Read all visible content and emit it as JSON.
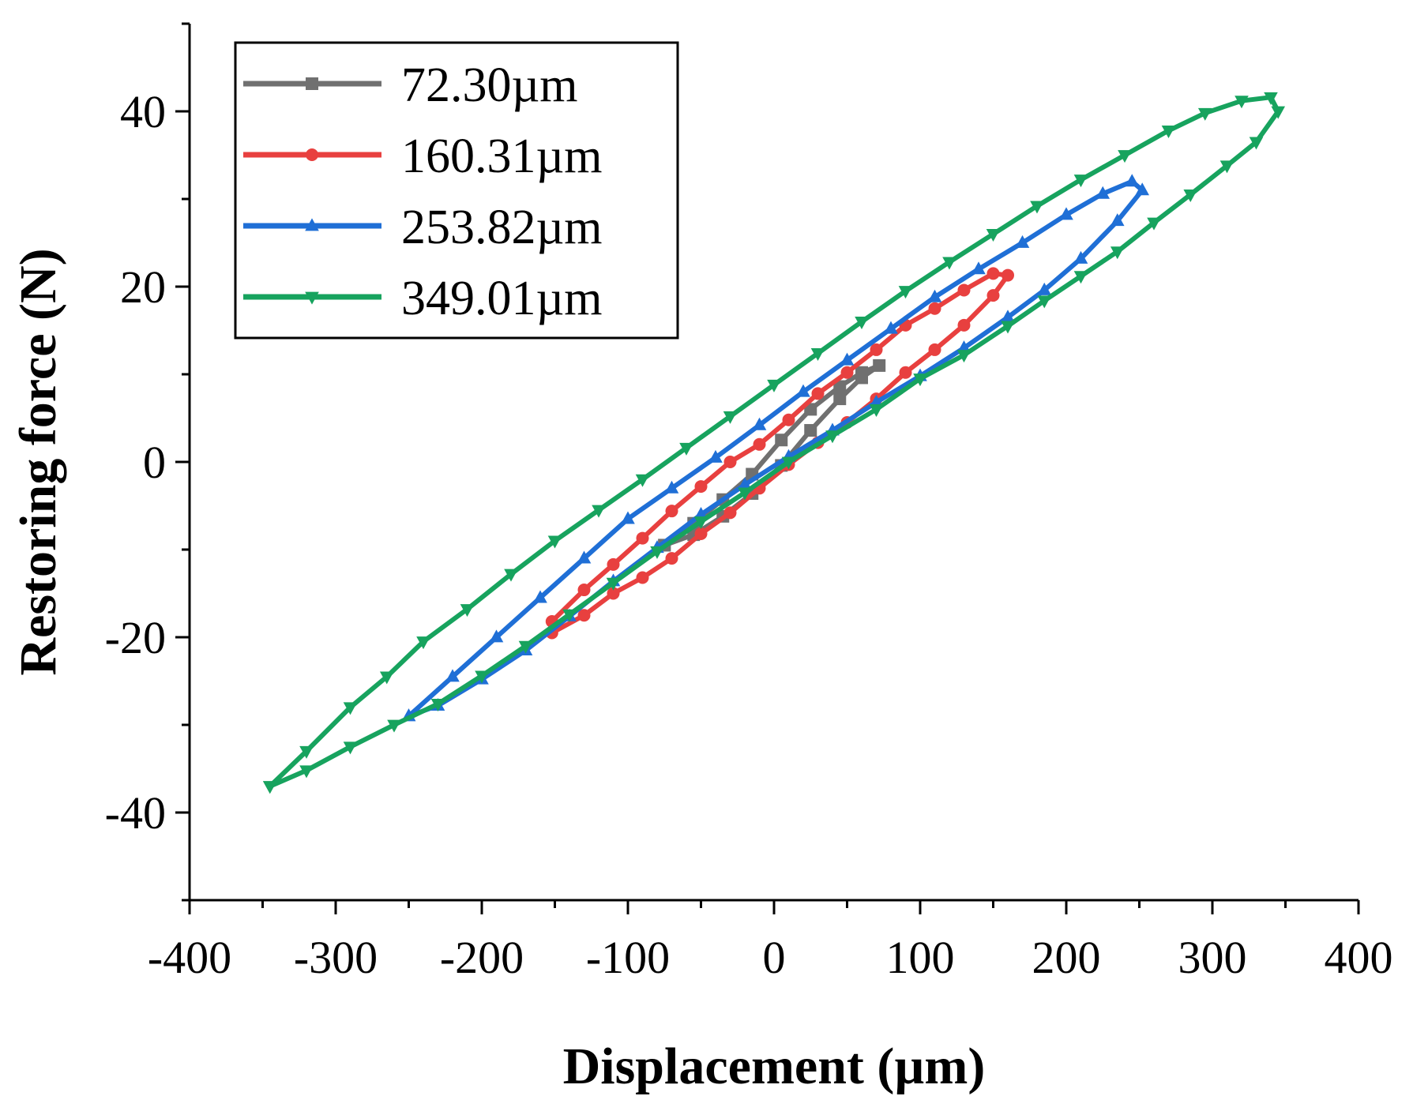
{
  "chart_data": {
    "type": "line",
    "title": "",
    "xlabel": "Displacement (µm)",
    "ylabel": "Restoring force (N)",
    "xlim": [
      -400,
      400
    ],
    "ylim": [
      -50,
      50
    ],
    "xticks": [
      -400,
      -300,
      -200,
      -100,
      0,
      100,
      200,
      300,
      400
    ],
    "yticks": [
      -40,
      -20,
      0,
      20,
      40
    ],
    "xtick_labels": [
      "-400",
      "-300",
      "-200",
      "-100",
      "0",
      "100",
      "200",
      "300",
      "400"
    ],
    "ytick_labels": [
      "-40",
      "-20",
      "0",
      "20",
      "40"
    ],
    "grid": false,
    "legend_position": "top-left",
    "series": [
      {
        "name": "72.30µm",
        "color": "#707070",
        "marker": "square",
        "x": [
          -75,
          -55,
          -35,
          -15,
          5,
          25,
          45,
          60,
          72,
          60,
          45,
          25,
          5,
          -15,
          -35,
          -55,
          -75
        ],
        "y": [
          -9.5,
          -7.0,
          -4.3,
          -1.4,
          2.5,
          6.0,
          8.6,
          10.2,
          11.0,
          9.6,
          7.2,
          3.6,
          -0.4,
          -3.6,
          -6.2,
          -8.3,
          -9.5
        ]
      },
      {
        "name": "160.31µm",
        "color": "#e8403f",
        "marker": "circle",
        "x": [
          -152,
          -130,
          -110,
          -90,
          -70,
          -50,
          -30,
          -10,
          10,
          30,
          50,
          70,
          90,
          110,
          130,
          150,
          160,
          150,
          130,
          110,
          90,
          70,
          50,
          30,
          10,
          -10,
          -30,
          -50,
          -70,
          -90,
          -110,
          -130,
          -152
        ],
        "y": [
          -18.2,
          -14.6,
          -11.7,
          -8.7,
          -5.6,
          -2.8,
          0.0,
          2.0,
          4.8,
          7.8,
          10.2,
          12.8,
          15.6,
          17.5,
          19.6,
          21.5,
          21.3,
          19.0,
          15.6,
          12.8,
          10.2,
          7.2,
          4.5,
          2.2,
          -0.3,
          -3.0,
          -5.8,
          -8.2,
          -11.0,
          -13.2,
          -15.0,
          -17.5,
          -19.5
        ]
      },
      {
        "name": "253.82µm",
        "color": "#1f6fd6",
        "marker": "triangle-up",
        "x": [
          -250,
          -220,
          -190,
          -160,
          -130,
          -100,
          -70,
          -40,
          -10,
          20,
          50,
          80,
          110,
          140,
          170,
          200,
          225,
          245,
          252,
          235,
          210,
          185,
          160,
          130,
          100,
          70,
          40,
          10,
          -20,
          -50,
          -80,
          -110,
          -140,
          -170,
          -200,
          -230,
          -250
        ],
        "y": [
          -29.0,
          -24.5,
          -20.0,
          -15.5,
          -11.0,
          -6.5,
          -3.0,
          0.5,
          4.2,
          8.0,
          11.6,
          15.2,
          18.8,
          22.0,
          25.0,
          28.2,
          30.6,
          32.0,
          31.0,
          27.5,
          23.2,
          19.6,
          16.5,
          13.0,
          9.8,
          6.8,
          3.6,
          0.6,
          -2.6,
          -6.0,
          -9.8,
          -13.6,
          -17.6,
          -21.5,
          -24.8,
          -27.8,
          -29.0
        ]
      },
      {
        "name": "349.01µm",
        "color": "#17a35e",
        "marker": "triangle-down",
        "x": [
          -345,
          -320,
          -290,
          -265,
          -240,
          -210,
          -180,
          -150,
          -120,
          -90,
          -60,
          -30,
          0,
          30,
          60,
          90,
          120,
          150,
          180,
          210,
          240,
          270,
          295,
          320,
          340,
          345,
          330,
          310,
          285,
          260,
          235,
          210,
          185,
          160,
          130,
          100,
          70,
          40,
          10,
          -20,
          -50,
          -80,
          -110,
          -140,
          -170,
          -200,
          -230,
          -260,
          -290,
          -320,
          -345
        ],
        "y": [
          -37.0,
          -33.0,
          -28.0,
          -24.5,
          -20.5,
          -16.8,
          -12.8,
          -9.0,
          -5.5,
          -2.0,
          1.6,
          5.2,
          8.8,
          12.4,
          16.0,
          19.5,
          22.8,
          26.0,
          29.2,
          32.2,
          35.0,
          37.8,
          39.8,
          41.2,
          41.6,
          40.0,
          36.5,
          33.8,
          30.5,
          27.3,
          24.0,
          21.2,
          18.4,
          15.5,
          12.2,
          9.5,
          6.0,
          3.0,
          0.0,
          -3.5,
          -6.8,
          -10.2,
          -13.8,
          -17.4,
          -21.0,
          -24.4,
          -27.6,
          -30.0,
          -32.5,
          -35.2,
          -37.0
        ]
      }
    ]
  }
}
